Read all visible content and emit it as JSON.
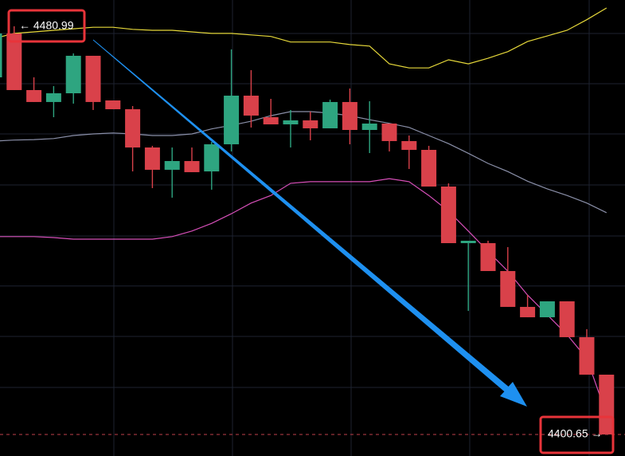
{
  "chart_data": {
    "type": "candlestick",
    "ylim": [
      4396.41,
      4486.17
    ],
    "yticks": [
      4479.58,
      4469.69,
      4459.81,
      4449.77,
      4439.72,
      4429.87,
      4419.95,
      4409.91
    ],
    "grid": true,
    "up_color": "#2ea580",
    "down_color": "#d9414a",
    "open": [
      4470.95,
      4479.58,
      4468.44,
      4466.09,
      4467.81,
      4475.19,
      4466.4,
      4464.67,
      4457.14,
      4452.75,
      4454.47,
      4452.43,
      4457.77,
      4467.34,
      4463.1,
      4461.69,
      4462.48,
      4460.91,
      4466.09,
      4460.59,
      4461.85,
      4458.4,
      4456.67,
      4449.45,
      4438.31,
      4438.31,
      4432.82,
      4425.76,
      4423.72,
      4426.86,
      4419.8,
      4412.42
    ],
    "high": [
      4480.68,
      4480.99,
      4470.95,
      4469.22,
      4475.66,
      4475.19,
      4466.4,
      4465.3,
      4457.46,
      4457.14,
      4457.14,
      4458.24,
      4476.44,
      4472.36,
      4466.71,
      4464.52,
      4464.2,
      4466.56,
      4468.75,
      4466.24,
      4461.85,
      4459.5,
      4457.46,
      4450.08,
      4438.78,
      4438.78,
      4437.53,
      4428.11,
      4426.86,
      4426.86,
      4421.37,
      4412.42
    ],
    "low": [
      4468.91,
      4468.44,
      4466.09,
      4463.1,
      4465.77,
      4464.52,
      4464.67,
      4452.43,
      4449.14,
      4447.26,
      4452.28,
      4448.83,
      4456.36,
      4461.06,
      4461.69,
      4457.14,
      4458.55,
      4460.91,
      4457.77,
      4456.04,
      4456.36,
      4452.91,
      4449.45,
      4438.31,
      4424.98,
      4432.82,
      4425.76,
      4423.72,
      4423.72,
      4419.8,
      4412.42,
      4400.65
    ],
    "close": [
      4479.58,
      4468.44,
      4466.09,
      4467.81,
      4475.19,
      4466.09,
      4464.67,
      4457.14,
      4452.75,
      4454.47,
      4452.28,
      4457.77,
      4467.34,
      4463.42,
      4461.69,
      4462.48,
      4460.91,
      4466.09,
      4460.59,
      4461.85,
      4458.4,
      4456.67,
      4449.45,
      4438.31,
      4438.78,
      4432.82,
      4425.76,
      4423.72,
      4426.86,
      4419.8,
      4412.42,
      4400.65
    ],
    "series": [
      {
        "color": "#e6d83a",
        "values": [
          4478.6,
          4479.6,
          4479.9,
          4480.2,
          4480.5,
          4480.8,
          4480.8,
          4480.4,
          4480.2,
          4480.2,
          4479.9,
          4479.6,
          4479.6,
          4479.3,
          4479.0,
          4477.9,
          4477.9,
          4477.9,
          4477.4,
          4477.1,
          4473.6,
          4472.8,
          4472.8,
          4474.4,
          4473.6,
          4474.7,
          4476.0,
          4478.0,
          4479.1,
          4480.2,
          4482.3,
          4484.6
        ]
      },
      {
        "color": "#8a8fa8",
        "values": [
          4458.4,
          4458.6,
          4458.7,
          4458.9,
          4459.5,
          4459.8,
          4460.0,
          4459.8,
          4459.5,
          4459.5,
          4459.8,
          4460.8,
          4461.5,
          4462.3,
          4463.4,
          4464.2,
          4464.2,
          4463.9,
          4463.4,
          4462.6,
          4461.9,
          4461.1,
          4459.5,
          4457.9,
          4456.0,
          4454.0,
          4452.4,
          4450.5,
          4449.0,
          4447.7,
          4446.2,
          4444.3
        ]
      },
      {
        "color": "#d64fb8",
        "values": [
          4439.6,
          4439.6,
          4439.6,
          4439.4,
          4439.1,
          4439.1,
          4439.1,
          4439.1,
          4439.1,
          4439.6,
          4440.7,
          4442.2,
          4444.1,
          4446.2,
          4447.7,
          4450.1,
          4450.4,
          4450.4,
          4450.4,
          4450.4,
          4451.0,
          4450.4,
          4447.7,
          4444.6,
          4440.7,
          4436.7,
          4432.8,
          4428.1,
          4424.2,
          4420.3,
          4415.6,
          4404.6
        ]
      }
    ],
    "high_marker": {
      "value": 4480.99,
      "label": "← 4480.99"
    },
    "low_marker": {
      "value": 4400.65,
      "label": "4400.65 →"
    }
  }
}
